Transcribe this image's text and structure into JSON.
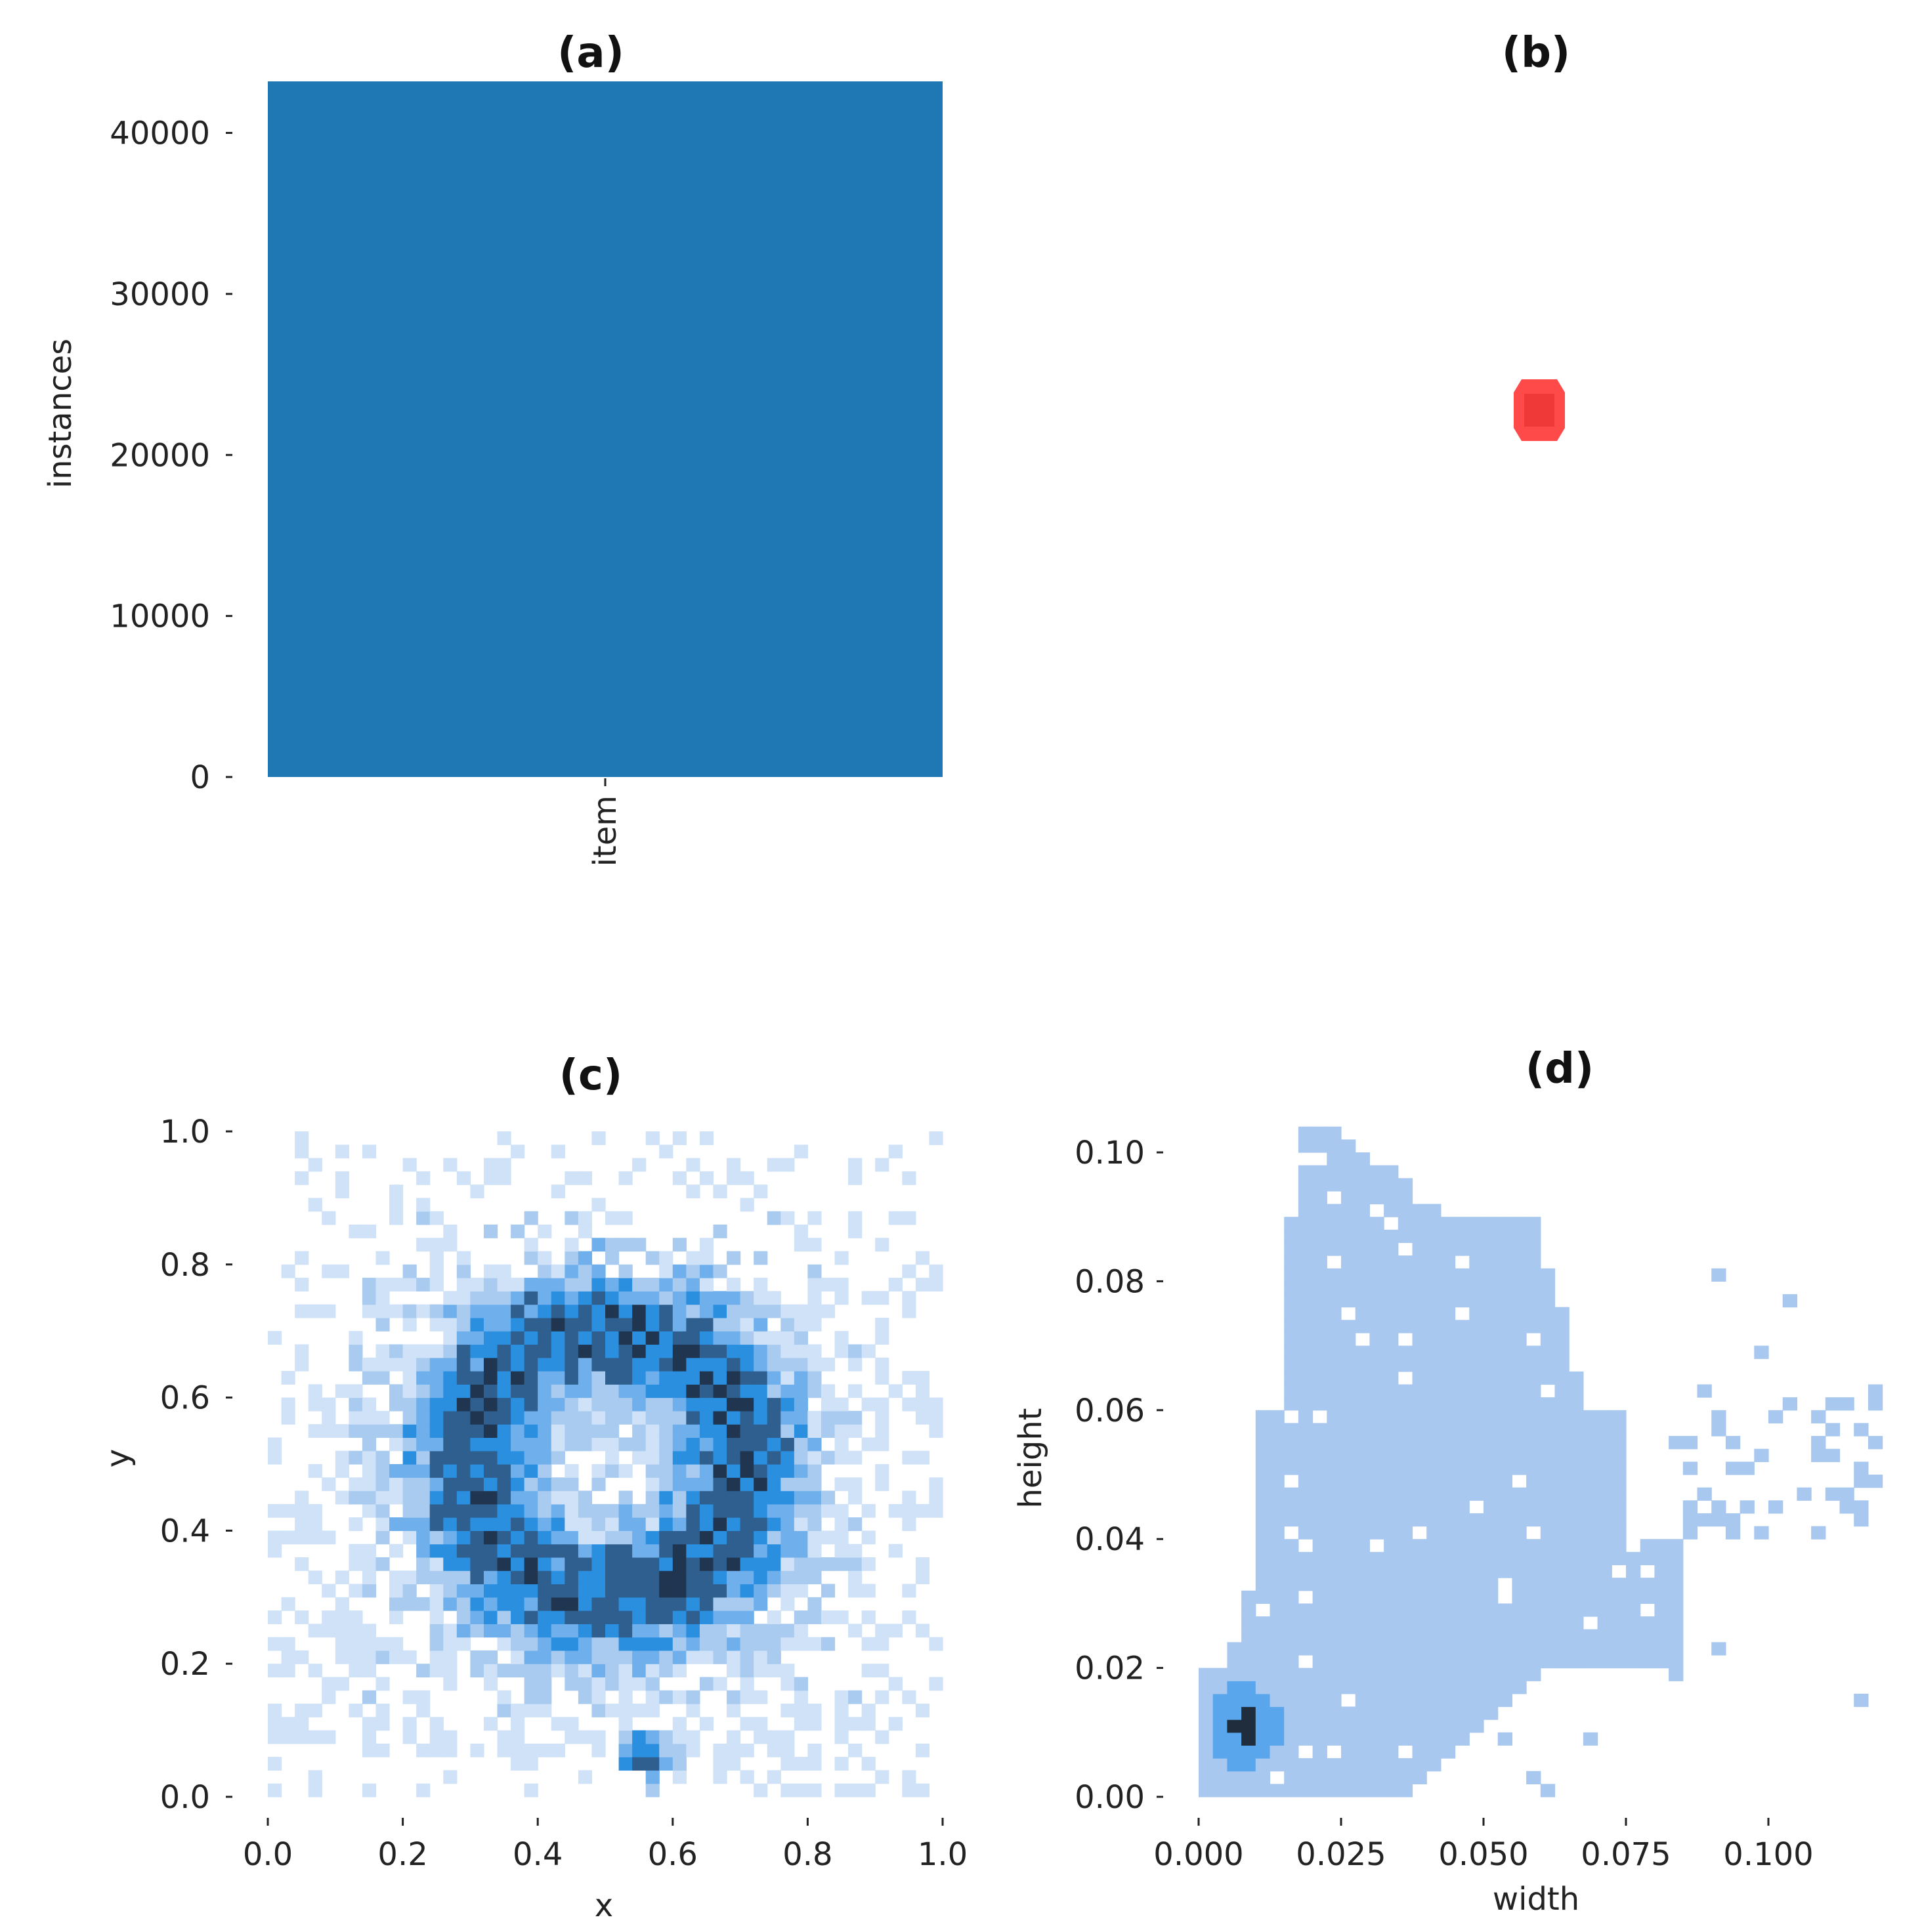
{
  "chart_data": [
    {
      "panel": "(a)",
      "type": "bar",
      "title": "(a)",
      "categories": [
        "item"
      ],
      "values": [
        43200
      ],
      "ylabel": "instances",
      "xlabel": "",
      "ylim": [
        0,
        43200
      ],
      "yticks": [
        "0",
        "10000",
        "20000",
        "30000",
        "40000"
      ],
      "color": "#1f77b4",
      "grid": false
    },
    {
      "panel": "(b)",
      "type": "other",
      "title": "(b)",
      "description_color": "#ff3b3b",
      "marker": "small red box glyph"
    },
    {
      "panel": "(c)",
      "type": "heatmap",
      "title": "(c)",
      "xlabel": "x",
      "ylabel": "y",
      "xlim": [
        0,
        1
      ],
      "ylim": [
        0,
        1
      ],
      "xticks": [
        "0.0",
        "0.2",
        "0.4",
        "0.6",
        "0.8",
        "1.0"
      ],
      "yticks": [
        "0.0",
        "0.2",
        "0.4",
        "0.6",
        "0.8",
        "1.0"
      ],
      "bins": 50,
      "dense_regions": [
        {
          "x": 0.5,
          "y": 0.5,
          "note": "ring of high density around center"
        },
        {
          "x": 0.56,
          "y": 0.06,
          "note": "dark cluster near bottom"
        }
      ],
      "colors": [
        "#cfe2f7",
        "#a9cbf0",
        "#6fb0ec",
        "#2b8fe0",
        "#2f5f8f",
        "#1f3550"
      ]
    },
    {
      "panel": "(d)",
      "type": "heatmap",
      "title": "(d)",
      "xlabel": "width",
      "ylabel": "height",
      "xlim": [
        0,
        0.12
      ],
      "ylim": [
        0,
        0.105
      ],
      "xticks": [
        "0.000",
        "0.025",
        "0.050",
        "0.075",
        "0.100"
      ],
      "yticks": [
        "0.00",
        "0.02",
        "0.04",
        "0.06",
        "0.08",
        "0.10"
      ],
      "peak": {
        "x": 0.008,
        "y": 0.011
      },
      "colors": [
        "#a9c8ef",
        "#5aa6ec",
        "#1f2d3d"
      ]
    }
  ]
}
